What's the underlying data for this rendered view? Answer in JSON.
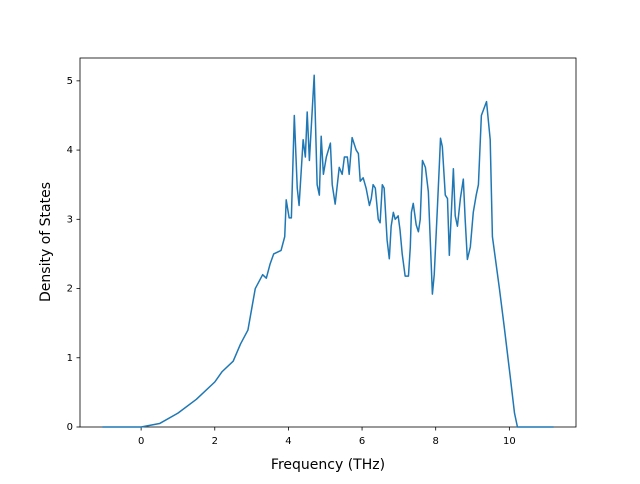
{
  "chart_data": {
    "type": "line",
    "xlabel": "Frequency (THz)",
    "ylabel": "Density of States",
    "xlim": [
      -1.66,
      11.81
    ],
    "ylim": [
      0,
      5.33
    ],
    "xticks": [
      0,
      2,
      4,
      6,
      8,
      10
    ],
    "yticks": [
      0,
      1,
      2,
      3,
      4,
      5
    ],
    "color": "#1f77b4",
    "x": [
      -1.05,
      0,
      0.5,
      1,
      1.5,
      2,
      2.2,
      2.5,
      2.7,
      2.9,
      3.0,
      3.1,
      3.3,
      3.4,
      3.5,
      3.6,
      3.8,
      3.9,
      3.94,
      4.02,
      4.08,
      4.16,
      4.24,
      4.29,
      4.4,
      4.46,
      4.51,
      4.57,
      4.7,
      4.78,
      4.84,
      4.89,
      4.95,
      5.03,
      5.14,
      5.19,
      5.27,
      5.38,
      5.46,
      5.52,
      5.6,
      5.65,
      5.73,
      5.84,
      5.9,
      5.95,
      6.03,
      6.11,
      6.2,
      6.25,
      6.3,
      6.36,
      6.44,
      6.49,
      6.55,
      6.6,
      6.68,
      6.74,
      6.79,
      6.85,
      6.9,
      6.98,
      7.03,
      7.09,
      7.17,
      7.26,
      7.31,
      7.34,
      7.39,
      7.47,
      7.53,
      7.58,
      7.64,
      7.72,
      7.8,
      7.91,
      7.96,
      8.04,
      8.1,
      8.13,
      8.18,
      8.26,
      8.32,
      8.37,
      8.48,
      8.53,
      8.59,
      8.67,
      8.75,
      8.8,
      8.86,
      8.94,
      9.02,
      9.1,
      9.16,
      9.24,
      9.38,
      9.48,
      9.54,
      9.73,
      9.86,
      10.03,
      10.14,
      10.22,
      11.2
    ],
    "values": [
      0,
      0,
      0.05,
      0.2,
      0.4,
      0.65,
      0.8,
      0.95,
      1.2,
      1.4,
      1.7,
      2.0,
      2.2,
      2.15,
      2.35,
      2.5,
      2.55,
      2.75,
      3.28,
      3.02,
      3.02,
      4.5,
      3.45,
      3.2,
      4.15,
      3.9,
      4.55,
      3.85,
      5.08,
      3.5,
      3.35,
      4.2,
      3.65,
      3.9,
      4.1,
      3.5,
      3.22,
      3.75,
      3.65,
      3.9,
      3.9,
      3.65,
      4.18,
      4.0,
      3.95,
      3.55,
      3.6,
      3.45,
      3.2,
      3.3,
      3.5,
      3.45,
      3.0,
      2.95,
      3.5,
      3.45,
      2.7,
      2.43,
      2.9,
      3.1,
      3.0,
      3.05,
      2.85,
      2.5,
      2.18,
      2.18,
      2.6,
      3.1,
      3.23,
      2.92,
      2.82,
      3.0,
      3.85,
      3.75,
      3.4,
      1.92,
      2.2,
      3.1,
      3.8,
      4.17,
      4.05,
      3.35,
      3.3,
      2.48,
      3.73,
      3.05,
      2.9,
      3.3,
      3.58,
      3.0,
      2.42,
      2.6,
      3.1,
      3.35,
      3.5,
      4.5,
      4.7,
      4.15,
      2.75,
      2.0,
      1.45,
      0.7,
      0.2,
      0,
      0
    ]
  }
}
